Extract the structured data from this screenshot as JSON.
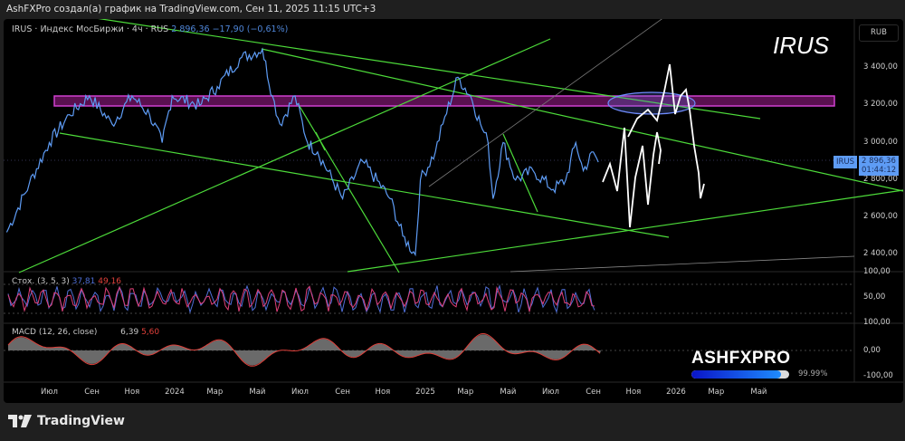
{
  "caption": "AshFXPro создал(а) график на TradingView.com, Сен 11, 2025 11:15 UTC+3",
  "legend": {
    "symbol_info": "IRUS · Индекс МосБиржи · 4ч · RUS",
    "price": "2 896,36",
    "change": "−17,90 (−0,61%)"
  },
  "big_label": "IRUS",
  "currency": "RUB",
  "price_tag": {
    "symbol": "IRUS",
    "price": "2 896,36",
    "countdown": "01:44:12"
  },
  "stoch": {
    "title": "Стох. (3, 5, 3)",
    "k": "37,81",
    "d": "49,16",
    "ticks": [
      "100,00",
      "50,00"
    ]
  },
  "macd": {
    "title": "MACD (12, 26, close)",
    "macd": "6,39",
    "signal": "5,60",
    "ticks": [
      "100,00",
      "0,00",
      "-100,00"
    ]
  },
  "brand": {
    "name": "ASHFXPRO",
    "progress_percent": 99.99,
    "progress_label": "99.99%"
  },
  "footer": {
    "logo": "TradingView"
  },
  "colors": {
    "price_line": "#5e9cf5",
    "trendline": "#4ddb3a",
    "zone": "#c83cc8",
    "stoch_k": "#4f6fd8",
    "stoch_d": "#e0407a"
  },
  "chart_data": {
    "type": "line",
    "title": "IRUS · Индекс МосБиржи · 4ч",
    "ylabel": "RUB",
    "ylim": [
      2300,
      3600
    ],
    "yticks": [
      3400,
      3200,
      3000,
      2800,
      2600,
      2400
    ],
    "ytick_labels": [
      "3 400,00",
      "3 200,00",
      "3 000,00",
      "2 800,00",
      "2 600,00",
      "2 400,00"
    ],
    "xticks": [
      {
        "t": 2023.5,
        "label": "Июл"
      },
      {
        "t": 2023.67,
        "label": "Сен"
      },
      {
        "t": 2023.83,
        "label": "Ноя"
      },
      {
        "t": 2024.0,
        "label": "2024"
      },
      {
        "t": 2024.16,
        "label": "Мар"
      },
      {
        "t": 2024.33,
        "label": "Май"
      },
      {
        "t": 2024.5,
        "label": "Июл"
      },
      {
        "t": 2024.67,
        "label": "Сен"
      },
      {
        "t": 2024.83,
        "label": "Ноя"
      },
      {
        "t": 2025.0,
        "label": "2025"
      },
      {
        "t": 2025.16,
        "label": "Мар"
      },
      {
        "t": 2025.33,
        "label": "Май"
      },
      {
        "t": 2025.5,
        "label": "Июл"
      },
      {
        "t": 2025.67,
        "label": "Сен"
      },
      {
        "t": 2025.83,
        "label": "Ноя"
      },
      {
        "t": 2026.0,
        "label": "2026"
      },
      {
        "t": 2026.16,
        "label": "Мар"
      },
      {
        "t": 2026.33,
        "label": "Май"
      }
    ],
    "series": [
      {
        "name": "IRUS",
        "points": [
          [
            2023.33,
            2520
          ],
          [
            2023.42,
            2780
          ],
          [
            2023.5,
            3000
          ],
          [
            2023.58,
            3150
          ],
          [
            2023.66,
            3250
          ],
          [
            2023.75,
            3100
          ],
          [
            2023.83,
            3250
          ],
          [
            2023.9,
            3150
          ],
          [
            2023.95,
            3000
          ],
          [
            2023.99,
            3250
          ],
          [
            2024.1,
            3200
          ],
          [
            2024.17,
            3300
          ],
          [
            2024.26,
            3450
          ],
          [
            2024.35,
            3500
          ],
          [
            2024.39,
            3250
          ],
          [
            2024.42,
            3100
          ],
          [
            2024.48,
            3250
          ],
          [
            2024.53,
            3000
          ],
          [
            2024.57,
            2950
          ],
          [
            2024.67,
            2700
          ],
          [
            2024.75,
            2900
          ],
          [
            2024.86,
            2700
          ],
          [
            2024.91,
            2500
          ],
          [
            2024.96,
            2400
          ],
          [
            2024.98,
            2800
          ],
          [
            2025.04,
            2950
          ],
          [
            2025.07,
            3100
          ],
          [
            2025.13,
            3350
          ],
          [
            2025.18,
            3250
          ],
          [
            2025.22,
            3100
          ],
          [
            2025.25,
            3000
          ],
          [
            2025.27,
            2700
          ],
          [
            2025.31,
            3000
          ],
          [
            2025.36,
            2800
          ],
          [
            2025.43,
            2850
          ],
          [
            2025.51,
            2750
          ],
          [
            2025.56,
            2800
          ],
          [
            2025.6,
            3000
          ],
          [
            2025.63,
            2850
          ],
          [
            2025.67,
            2950
          ],
          [
            2025.69,
            2896
          ]
        ]
      }
    ]
  }
}
